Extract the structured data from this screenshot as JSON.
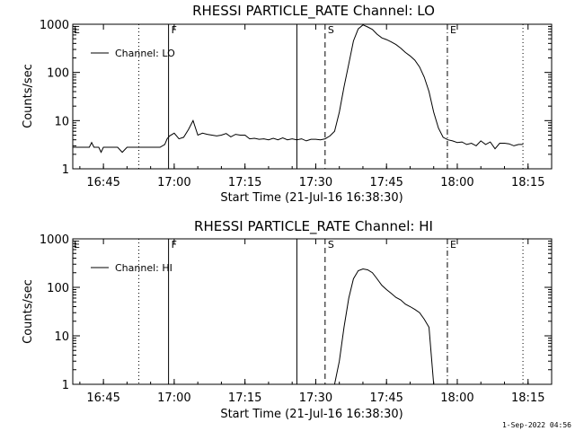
{
  "footer": {
    "timestamp": "1-Sep-2022 04:56"
  },
  "markers": [
    {
      "label": "F",
      "time": 16.98,
      "style": "solid"
    },
    {
      "label": "S",
      "time": 17.533,
      "style": "dashed"
    },
    {
      "label": "E",
      "time": 17.965,
      "style": "dashdot"
    }
  ],
  "chart_data": [
    {
      "type": "line",
      "title": "RHESSI PARTICLE_RATE Channel: LO",
      "xlabel": "Start Time (21-Jul-16 16:38:30)",
      "ylabel": "Counts/sec",
      "y_scale": "log",
      "xlim": [
        "16:38:30",
        "18:20:00"
      ],
      "ylim": [
        1,
        1000
      ],
      "x_ticks": [
        "16:45",
        "17:00",
        "17:15",
        "17:30",
        "17:45",
        "18:00",
        "18:15"
      ],
      "y_ticks": [
        "1",
        "10",
        "100",
        "1000"
      ],
      "legend": "top-left",
      "series": [
        {
          "name": "Channel: LO",
          "x": [
            "16:38:30",
            "16:40",
            "16:41",
            "16:42",
            "16:42:30",
            "16:43",
            "16:44",
            "16:44:30",
            "16:45",
            "16:46",
            "16:48",
            "16:49",
            "16:50",
            "16:52",
            "16:54",
            "16:55",
            "16:56",
            "16:57",
            "16:58",
            "16:58:30",
            "16:59",
            "17:00",
            "17:01",
            "17:02",
            "17:03",
            "17:04",
            "17:05",
            "17:06",
            "17:07",
            "17:08",
            "17:09",
            "17:10",
            "17:11",
            "17:12",
            "17:13",
            "17:14",
            "17:15",
            "17:16",
            "17:17",
            "17:18",
            "17:19",
            "17:20",
            "17:21",
            "17:22",
            "17:23",
            "17:24",
            "17:25",
            "17:26",
            "17:27",
            "17:28",
            "17:29",
            "17:30",
            "17:31",
            "17:32",
            "17:33",
            "17:34",
            "17:35",
            "17:36",
            "17:37",
            "17:38",
            "17:39",
            "17:40",
            "17:41",
            "17:42",
            "17:43",
            "17:44",
            "17:45",
            "17:46",
            "17:47",
            "17:48",
            "17:49",
            "17:50",
            "17:51",
            "17:52",
            "17:53",
            "17:54",
            "17:55",
            "17:56",
            "17:57",
            "17:58",
            "17:59",
            "18:00",
            "18:01",
            "18:02",
            "18:03",
            "18:04",
            "18:05",
            "18:06",
            "18:07",
            "18:08",
            "18:09",
            "18:10",
            "18:11",
            "18:12",
            "18:13",
            "18:14"
          ],
          "y": [
            2.8,
            2.8,
            2.8,
            2.8,
            3.5,
            2.8,
            2.8,
            2.2,
            2.8,
            2.8,
            2.8,
            2.2,
            2.8,
            2.8,
            2.8,
            2.8,
            2.8,
            2.8,
            3.2,
            4.2,
            4.8,
            5.5,
            4.2,
            4.5,
            6.5,
            10,
            5,
            5.5,
            5.2,
            5,
            4.8,
            5,
            5.4,
            4.6,
            5.2,
            5,
            5,
            4.2,
            4.3,
            4.1,
            4.2,
            4.0,
            4.3,
            4.0,
            4.4,
            4.0,
            4.2,
            4.0,
            4.2,
            3.8,
            4.1,
            4.1,
            4.0,
            4.2,
            4.8,
            6,
            15,
            50,
            150,
            450,
            800,
            970,
            880,
            780,
            620,
            520,
            480,
            430,
            380,
            320,
            260,
            220,
            180,
            130,
            80,
            40,
            15,
            7,
            4.5,
            4.0,
            3.8,
            3.5,
            3.6,
            3.2,
            3.4,
            3.0,
            3.8,
            3.2,
            3.6,
            2.6,
            3.4,
            3.4,
            3.3,
            3.0,
            3.2,
            3.2
          ]
        }
      ]
    },
    {
      "type": "line",
      "title": "RHESSI PARTICLE_RATE Channel: HI",
      "xlabel": "Start Time (21-Jul-16 16:38:30)",
      "ylabel": "Counts/sec",
      "y_scale": "log",
      "xlim": [
        "16:38:30",
        "18:20:00"
      ],
      "ylim": [
        1,
        1000
      ],
      "x_ticks": [
        "16:45",
        "17:00",
        "17:15",
        "17:30",
        "17:45",
        "18:00",
        "18:15"
      ],
      "y_ticks": [
        "1",
        "10",
        "100",
        "1000"
      ],
      "legend": "top-left",
      "series": [
        {
          "name": "Channel: HI",
          "x": [
            "17:34",
            "17:35",
            "17:36",
            "17:37",
            "17:38",
            "17:39",
            "17:40",
            "17:41",
            "17:42",
            "17:43",
            "17:44",
            "17:45",
            "17:46",
            "17:47",
            "17:48",
            "17:49",
            "17:50",
            "17:51",
            "17:52",
            "17:53",
            "17:54",
            "17:55"
          ],
          "y": [
            1,
            3,
            15,
            60,
            150,
            220,
            240,
            230,
            200,
            150,
            110,
            90,
            75,
            62,
            55,
            45,
            40,
            35,
            30,
            22,
            15,
            1
          ]
        }
      ]
    }
  ]
}
